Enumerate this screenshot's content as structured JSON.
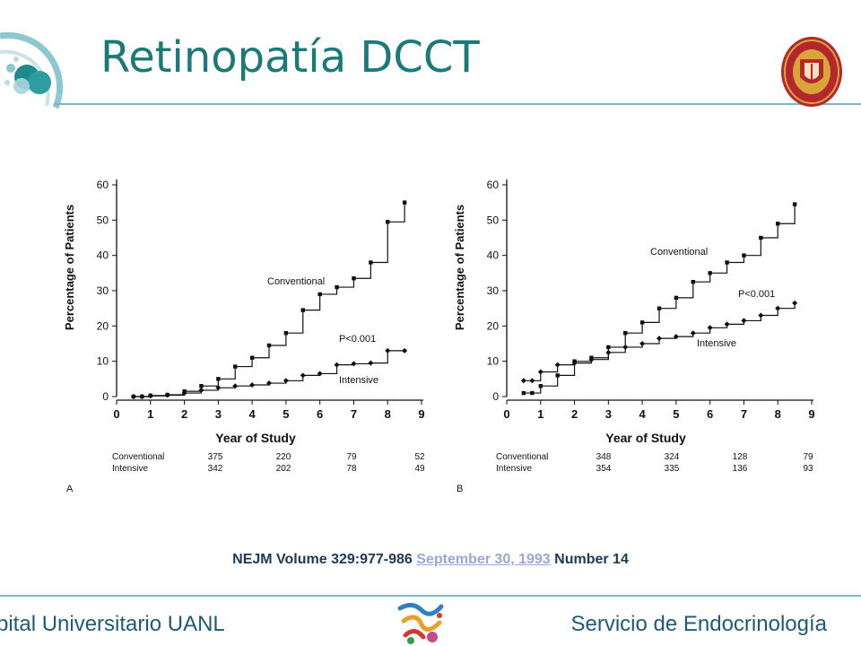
{
  "slide": {
    "title": "Retinopatía DCCT",
    "citation": {
      "prefix": "NEJM Volume 329:977-986",
      "link": "September 30, 1993",
      "suffix": "Number 14"
    },
    "footer": {
      "left": "spital Universitario UANL",
      "right": "Servicio de Endocrinología"
    }
  },
  "colors": {
    "title": "#1a7a78",
    "rule": "#7fb6c4",
    "footer_text": "#1f5a78",
    "citation_text": "#1b3a5a",
    "citation_link": "#9aa7d8",
    "seal_red": "#b3272d",
    "seal_gold": "#d9a53a"
  },
  "icons": {
    "header_decoration": "teal-bubbles-icon",
    "seal": "university-seal-icon",
    "footer_logo": "colorful-logo-icon"
  },
  "chart_data": [
    {
      "type": "line",
      "panel": "A",
      "xlabel": "Year of Study",
      "ylabel": "Percentage of Patients",
      "xlim": [
        0,
        9
      ],
      "ylim": [
        0,
        60
      ],
      "xticks": [
        0,
        1,
        2,
        3,
        4,
        5,
        6,
        7,
        8,
        9
      ],
      "yticks": [
        0,
        10,
        20,
        30,
        40,
        50,
        60
      ],
      "p_value": "P<0.001",
      "series": [
        {
          "name": "Conventional",
          "x": [
            0.5,
            0.75,
            1.0,
            1.5,
            2.0,
            2.5,
            3.0,
            3.5,
            4.0,
            4.5,
            5.0,
            5.5,
            6.0,
            6.5,
            7.0,
            7.5,
            8.0,
            8.5
          ],
          "y": [
            0,
            0,
            0.3,
            0.5,
            1.5,
            3,
            5,
            8.5,
            11,
            14.5,
            18,
            24.5,
            29,
            31,
            33.5,
            38,
            49.5,
            55
          ]
        },
        {
          "name": "Intensive",
          "x": [
            0.5,
            0.75,
            1.0,
            1.5,
            2.0,
            2.5,
            3.0,
            3.5,
            4.0,
            4.5,
            5.0,
            5.5,
            6.0,
            6.5,
            7.0,
            7.5,
            8.0,
            8.5
          ],
          "y": [
            0,
            0,
            0.2,
            0.4,
            1,
            1.8,
            2.5,
            3,
            3.3,
            3.8,
            4.5,
            6,
            6.5,
            9,
            9.3,
            9.5,
            13,
            13
          ]
        }
      ],
      "numbers_at_risk": {
        "years": [
          3,
          5,
          7,
          9
        ],
        "rows": [
          {
            "label": "Conventional",
            "values": [
              "375",
              "220",
              "79",
              "52"
            ]
          },
          {
            "label": "Intensive",
            "values": [
              "342",
              "202",
              "78",
              "49"
            ]
          }
        ]
      }
    },
    {
      "type": "line",
      "panel": "B",
      "xlabel": "Year of Study",
      "ylabel": "Percentage of Patients",
      "xlim": [
        0,
        9
      ],
      "ylim": [
        0,
        60
      ],
      "xticks": [
        0,
        1,
        2,
        3,
        4,
        5,
        6,
        7,
        8,
        9
      ],
      "yticks": [
        0,
        10,
        20,
        30,
        40,
        50,
        60
      ],
      "p_value": "P<0.001",
      "series": [
        {
          "name": "Conventional",
          "x": [
            0.5,
            0.75,
            1.0,
            1.5,
            2.0,
            2.5,
            3.0,
            3.5,
            4.0,
            4.5,
            5.0,
            5.5,
            6.0,
            6.5,
            7.0,
            7.5,
            8.0,
            8.5
          ],
          "y": [
            1,
            1,
            3,
            6,
            10,
            11,
            14,
            18,
            21,
            25,
            28,
            32.5,
            35,
            38,
            40,
            45,
            49,
            54.5
          ]
        },
        {
          "name": "Intensive",
          "x": [
            0.5,
            0.75,
            1.0,
            1.5,
            2.0,
            2.5,
            3.0,
            3.5,
            4.0,
            4.5,
            5.0,
            5.5,
            6.0,
            6.5,
            7.0,
            7.5,
            8.0,
            8.5
          ],
          "y": [
            4.5,
            4.5,
            7,
            9,
            9.5,
            10.5,
            12.5,
            14,
            15,
            16.5,
            17,
            18,
            19.5,
            20.5,
            21.5,
            23,
            25,
            26.5
          ]
        }
      ],
      "numbers_at_risk": {
        "years": [
          3,
          5,
          7,
          9
        ],
        "rows": [
          {
            "label": "Conventional",
            "values": [
              "348",
              "324",
              "128",
              "79"
            ]
          },
          {
            "label": "Intensive",
            "values": [
              "354",
              "335",
              "136",
              "93"
            ]
          }
        ]
      }
    }
  ]
}
